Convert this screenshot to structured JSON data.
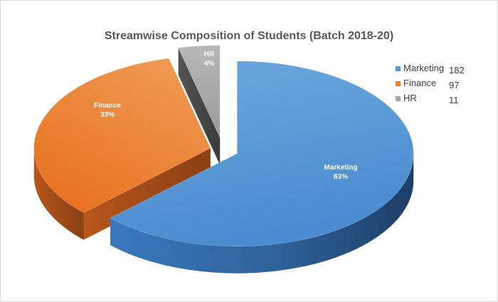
{
  "chart_data": {
    "type": "pie",
    "title": "Streamwise Composition of Students (Batch 2018-20)",
    "categories": [
      "Marketing",
      "Finance",
      "HR"
    ],
    "values": [
      182,
      97,
      11
    ],
    "percent_labels": [
      "63%",
      "33%",
      "4%"
    ],
    "colors": [
      "#5b9bd5",
      "#ed7d31",
      "#a5a5a5"
    ],
    "legend_position": "right",
    "style": "3d-exploded-pie"
  }
}
